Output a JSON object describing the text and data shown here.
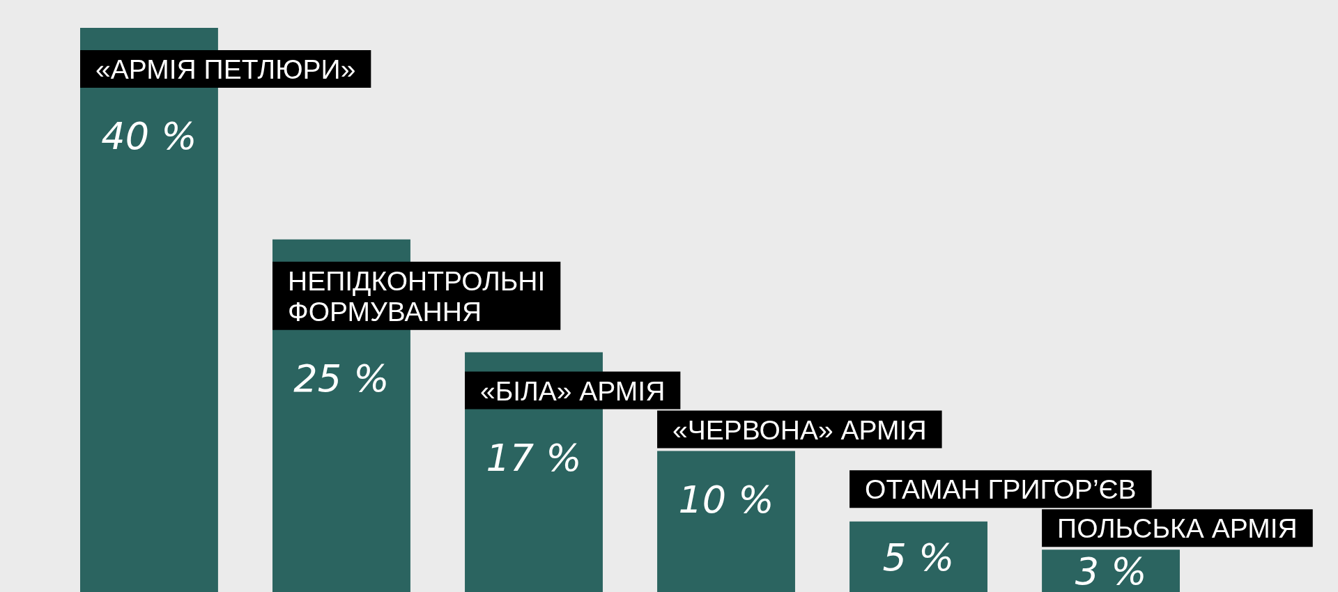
{
  "chart_data": {
    "type": "bar",
    "categories": [
      "«АРМІЯ ПЕТЛЮРИ»",
      "НЕПІДКОНТРОЛЬНІ ФОРМУВАННЯ",
      "«БІЛА» АРМІЯ",
      "«ЧЕРВОНА» АРМІЯ",
      "ОТАМАН ГРИГОР’ЄВ",
      "ПОЛЬСЬКА АРМІЯ"
    ],
    "values": [
      40,
      25,
      17,
      10,
      5,
      3
    ],
    "value_labels": [
      "40 %",
      "25 %",
      "17 %",
      "10 %",
      "5 %",
      "3 %"
    ],
    "color": "#2b6460"
  }
}
